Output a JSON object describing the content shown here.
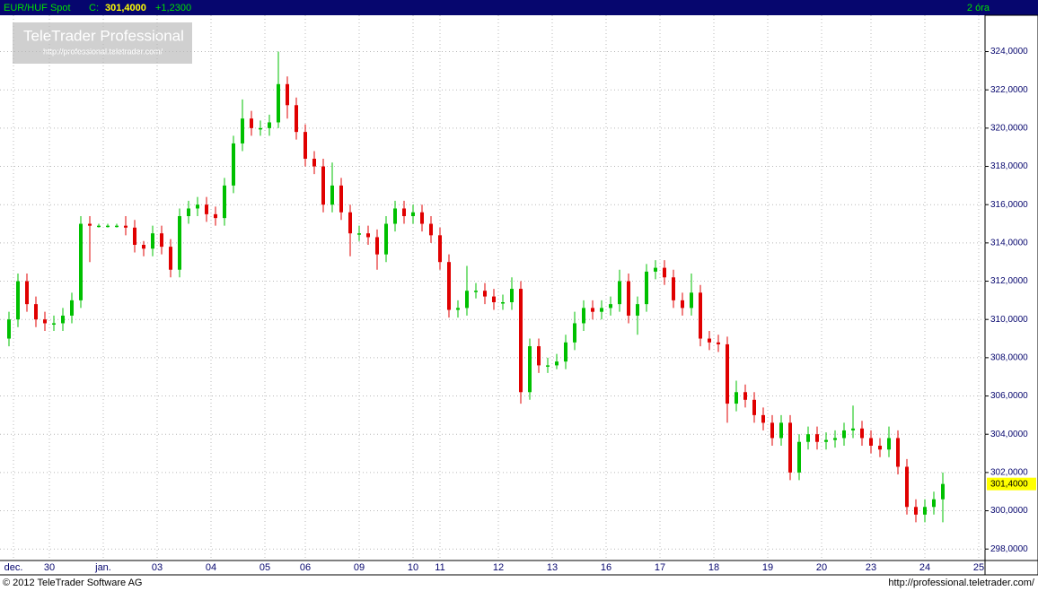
{
  "header": {
    "symbol": "EUR/HUF Spot",
    "close_prefix": "C:",
    "last": "301,4000",
    "change": "+1,2300",
    "interval": "2 óra"
  },
  "watermark": {
    "title": "TeleTrader Professional",
    "url": "http://professional.teletrader.com/"
  },
  "footer": {
    "copyright": "© 2012 TeleTrader Software AG",
    "url": "http://professional.teletrader.com/"
  },
  "chart_data": {
    "type": "candlestick",
    "up_color": "#00c000",
    "down_color": "#e00000",
    "grid": true,
    "last_price_label": "301,4000",
    "last_price": 301.4,
    "xlim": [
      -1,
      218
    ],
    "ylim": [
      297.4,
      325.9
    ],
    "xticks": [
      {
        "value": 2,
        "label": "dec."
      },
      {
        "value": 10,
        "label": "30"
      },
      {
        "value": 22,
        "label": "jan."
      },
      {
        "value": 34,
        "label": "03"
      },
      {
        "value": 46,
        "label": "04"
      },
      {
        "value": 58,
        "label": "05"
      },
      {
        "value": 67,
        "label": "06"
      },
      {
        "value": 79,
        "label": "09"
      },
      {
        "value": 91,
        "label": "10"
      },
      {
        "value": 97,
        "label": "11"
      },
      {
        "value": 110,
        "label": "12"
      },
      {
        "value": 122,
        "label": "13"
      },
      {
        "value": 134,
        "label": "16"
      },
      {
        "value": 146,
        "label": "17"
      },
      {
        "value": 158,
        "label": "18"
      },
      {
        "value": 170,
        "label": "19"
      },
      {
        "value": 182,
        "label": "20"
      },
      {
        "value": 193,
        "label": "23"
      },
      {
        "value": 205,
        "label": "24"
      },
      {
        "value": 217,
        "label": "25"
      }
    ],
    "yticks": [
      {
        "value": 298,
        "label": "298,0000"
      },
      {
        "value": 300,
        "label": "300,0000"
      },
      {
        "value": 302,
        "label": "302,0000"
      },
      {
        "value": 304,
        "label": "304,0000"
      },
      {
        "value": 306,
        "label": "306,0000"
      },
      {
        "value": 308,
        "label": "308,0000"
      },
      {
        "value": 310,
        "label": "310,0000"
      },
      {
        "value": 312,
        "label": "312,0000"
      },
      {
        "value": 314,
        "label": "314,0000"
      },
      {
        "value": 316,
        "label": "316,0000"
      },
      {
        "value": 318,
        "label": "318,0000"
      },
      {
        "value": 320,
        "label": "320,0000"
      },
      {
        "value": 322,
        "label": "322,0000"
      },
      {
        "value": 324,
        "label": "324,0000"
      }
    ],
    "x": [
      1,
      3,
      5,
      7,
      9,
      11,
      13,
      15,
      17,
      19,
      21,
      23,
      25,
      27,
      29,
      31,
      33,
      35,
      37,
      39,
      41,
      43,
      45,
      47,
      49,
      51,
      53,
      55,
      57,
      59,
      61,
      63,
      65,
      67,
      69,
      71,
      73,
      75,
      77,
      79,
      81,
      83,
      85,
      87,
      89,
      91,
      93,
      95,
      97,
      99,
      101,
      103,
      105,
      107,
      109,
      111,
      113,
      115,
      117,
      119,
      121,
      123,
      125,
      127,
      129,
      131,
      133,
      135,
      137,
      139,
      141,
      143,
      145,
      147,
      149,
      151,
      153,
      155,
      157,
      159,
      161,
      163,
      165,
      167,
      169,
      171,
      173,
      175,
      177,
      179,
      181,
      183,
      185,
      187,
      189,
      191,
      193,
      195,
      197,
      199,
      201,
      203,
      205,
      207,
      209
    ],
    "open": [
      309.0,
      310.0,
      312.0,
      310.8,
      310.0,
      309.8,
      309.8,
      310.2,
      311.0,
      315.0,
      314.9,
      314.9,
      314.9,
      314.9,
      314.8,
      313.9,
      313.7,
      314.5,
      313.8,
      312.6,
      315.4,
      315.8,
      316.0,
      315.5,
      315.3,
      317.0,
      319.2,
      320.5,
      320.0,
      320.0,
      320.3,
      322.3,
      321.2,
      319.8,
      318.4,
      318.0,
      316.0,
      317.0,
      315.6,
      314.5,
      314.5,
      314.3,
      313.4,
      315.0,
      315.8,
      315.4,
      315.6,
      315.0,
      314.4,
      313.0,
      310.5,
      310.6,
      311.5,
      311.5,
      311.2,
      310.9,
      310.9,
      311.6,
      306.2,
      308.6,
      307.6,
      307.6,
      307.8,
      308.8,
      309.8,
      310.6,
      310.4,
      310.6,
      310.8,
      312.0,
      310.2,
      310.8,
      312.5,
      312.7,
      312.2,
      311.0,
      310.6,
      311.4,
      309.0,
      308.8,
      308.7,
      305.6,
      306.2,
      305.8,
      305.0,
      304.6,
      303.8,
      304.6,
      302.0,
      303.6,
      304.0,
      303.6,
      303.7,
      303.8,
      304.2,
      304.3,
      303.8,
      303.4,
      303.2,
      303.8,
      302.3,
      300.2,
      299.8,
      300.2,
      300.6
    ],
    "high": [
      310.4,
      312.4,
      312.4,
      311.2,
      310.4,
      310.2,
      310.6,
      311.4,
      315.4,
      315.4,
      315.0,
      315.0,
      315.0,
      315.4,
      315.2,
      314.1,
      314.9,
      314.9,
      314.2,
      315.8,
      316.2,
      316.4,
      316.4,
      315.9,
      317.4,
      319.6,
      321.5,
      320.9,
      320.4,
      320.7,
      324.0,
      322.7,
      321.6,
      320.2,
      318.8,
      318.4,
      318.2,
      317.4,
      316.0,
      314.9,
      314.9,
      314.7,
      315.4,
      316.2,
      316.2,
      316.0,
      316.0,
      315.4,
      314.8,
      313.4,
      311.0,
      312.8,
      311.9,
      311.9,
      311.6,
      311.3,
      312.2,
      312.0,
      309.0,
      309.0,
      308.0,
      308.2,
      309.2,
      310.4,
      311.0,
      311.0,
      311.0,
      311.2,
      312.6,
      312.4,
      311.2,
      312.9,
      313.1,
      313.1,
      312.6,
      311.4,
      312.4,
      311.8,
      309.4,
      309.2,
      309.1,
      306.8,
      306.6,
      306.2,
      305.4,
      305.0,
      305.0,
      305.0,
      304.0,
      304.4,
      304.4,
      304.1,
      304.2,
      304.6,
      305.5,
      304.7,
      304.2,
      303.8,
      304.4,
      304.2,
      302.7,
      300.6,
      300.6,
      301.0,
      302.0
    ],
    "low": [
      308.6,
      309.6,
      310.4,
      309.6,
      309.4,
      309.4,
      309.4,
      309.8,
      310.6,
      313.0,
      314.8,
      314.8,
      314.8,
      314.4,
      313.5,
      313.3,
      313.3,
      313.4,
      312.2,
      312.2,
      315.0,
      315.4,
      315.1,
      314.9,
      314.9,
      316.6,
      318.8,
      319.6,
      319.6,
      319.6,
      320.0,
      320.5,
      319.4,
      318.0,
      317.6,
      315.6,
      315.6,
      315.2,
      313.3,
      314.1,
      313.9,
      312.6,
      313.0,
      314.6,
      315.0,
      315.0,
      314.6,
      314.0,
      312.6,
      310.1,
      310.1,
      310.2,
      311.1,
      310.8,
      310.5,
      310.5,
      310.5,
      305.6,
      305.8,
      307.2,
      307.2,
      307.4,
      307.4,
      308.4,
      309.4,
      310.0,
      310.0,
      310.2,
      310.4,
      309.8,
      309.2,
      310.4,
      312.1,
      311.8,
      310.6,
      310.2,
      310.2,
      308.6,
      308.4,
      308.3,
      304.6,
      305.2,
      305.4,
      304.6,
      304.2,
      303.4,
      303.4,
      301.6,
      301.6,
      303.2,
      303.2,
      303.2,
      303.3,
      303.4,
      303.8,
      303.4,
      303.0,
      302.8,
      302.8,
      301.9,
      299.8,
      299.4,
      299.4,
      299.8,
      299.4
    ],
    "close": [
      310.0,
      312.0,
      310.8,
      310.0,
      309.8,
      309.8,
      310.2,
      311.0,
      315.0,
      314.9,
      314.9,
      314.9,
      314.9,
      314.8,
      313.9,
      313.7,
      314.5,
      313.8,
      312.6,
      315.4,
      315.8,
      316.0,
      315.5,
      315.3,
      317.0,
      319.2,
      320.5,
      320.0,
      320.0,
      320.3,
      322.3,
      321.2,
      319.8,
      318.4,
      318.0,
      316.0,
      317.0,
      315.6,
      314.5,
      314.5,
      314.3,
      313.4,
      315.0,
      315.8,
      315.4,
      315.6,
      315.0,
      314.4,
      313.0,
      310.5,
      310.6,
      311.5,
      311.5,
      311.2,
      310.9,
      310.9,
      311.6,
      306.2,
      308.6,
      307.6,
      307.6,
      307.8,
      308.8,
      309.8,
      310.6,
      310.4,
      310.6,
      310.8,
      312.0,
      310.2,
      310.8,
      312.5,
      312.7,
      312.2,
      311.0,
      310.6,
      311.4,
      309.0,
      308.8,
      308.7,
      305.6,
      306.2,
      305.8,
      305.0,
      304.6,
      303.8,
      304.6,
      302.0,
      303.6,
      304.0,
      303.6,
      303.7,
      303.8,
      304.2,
      304.3,
      303.8,
      303.4,
      303.2,
      303.8,
      302.3,
      300.2,
      299.8,
      300.2,
      300.6,
      301.4
    ]
  }
}
